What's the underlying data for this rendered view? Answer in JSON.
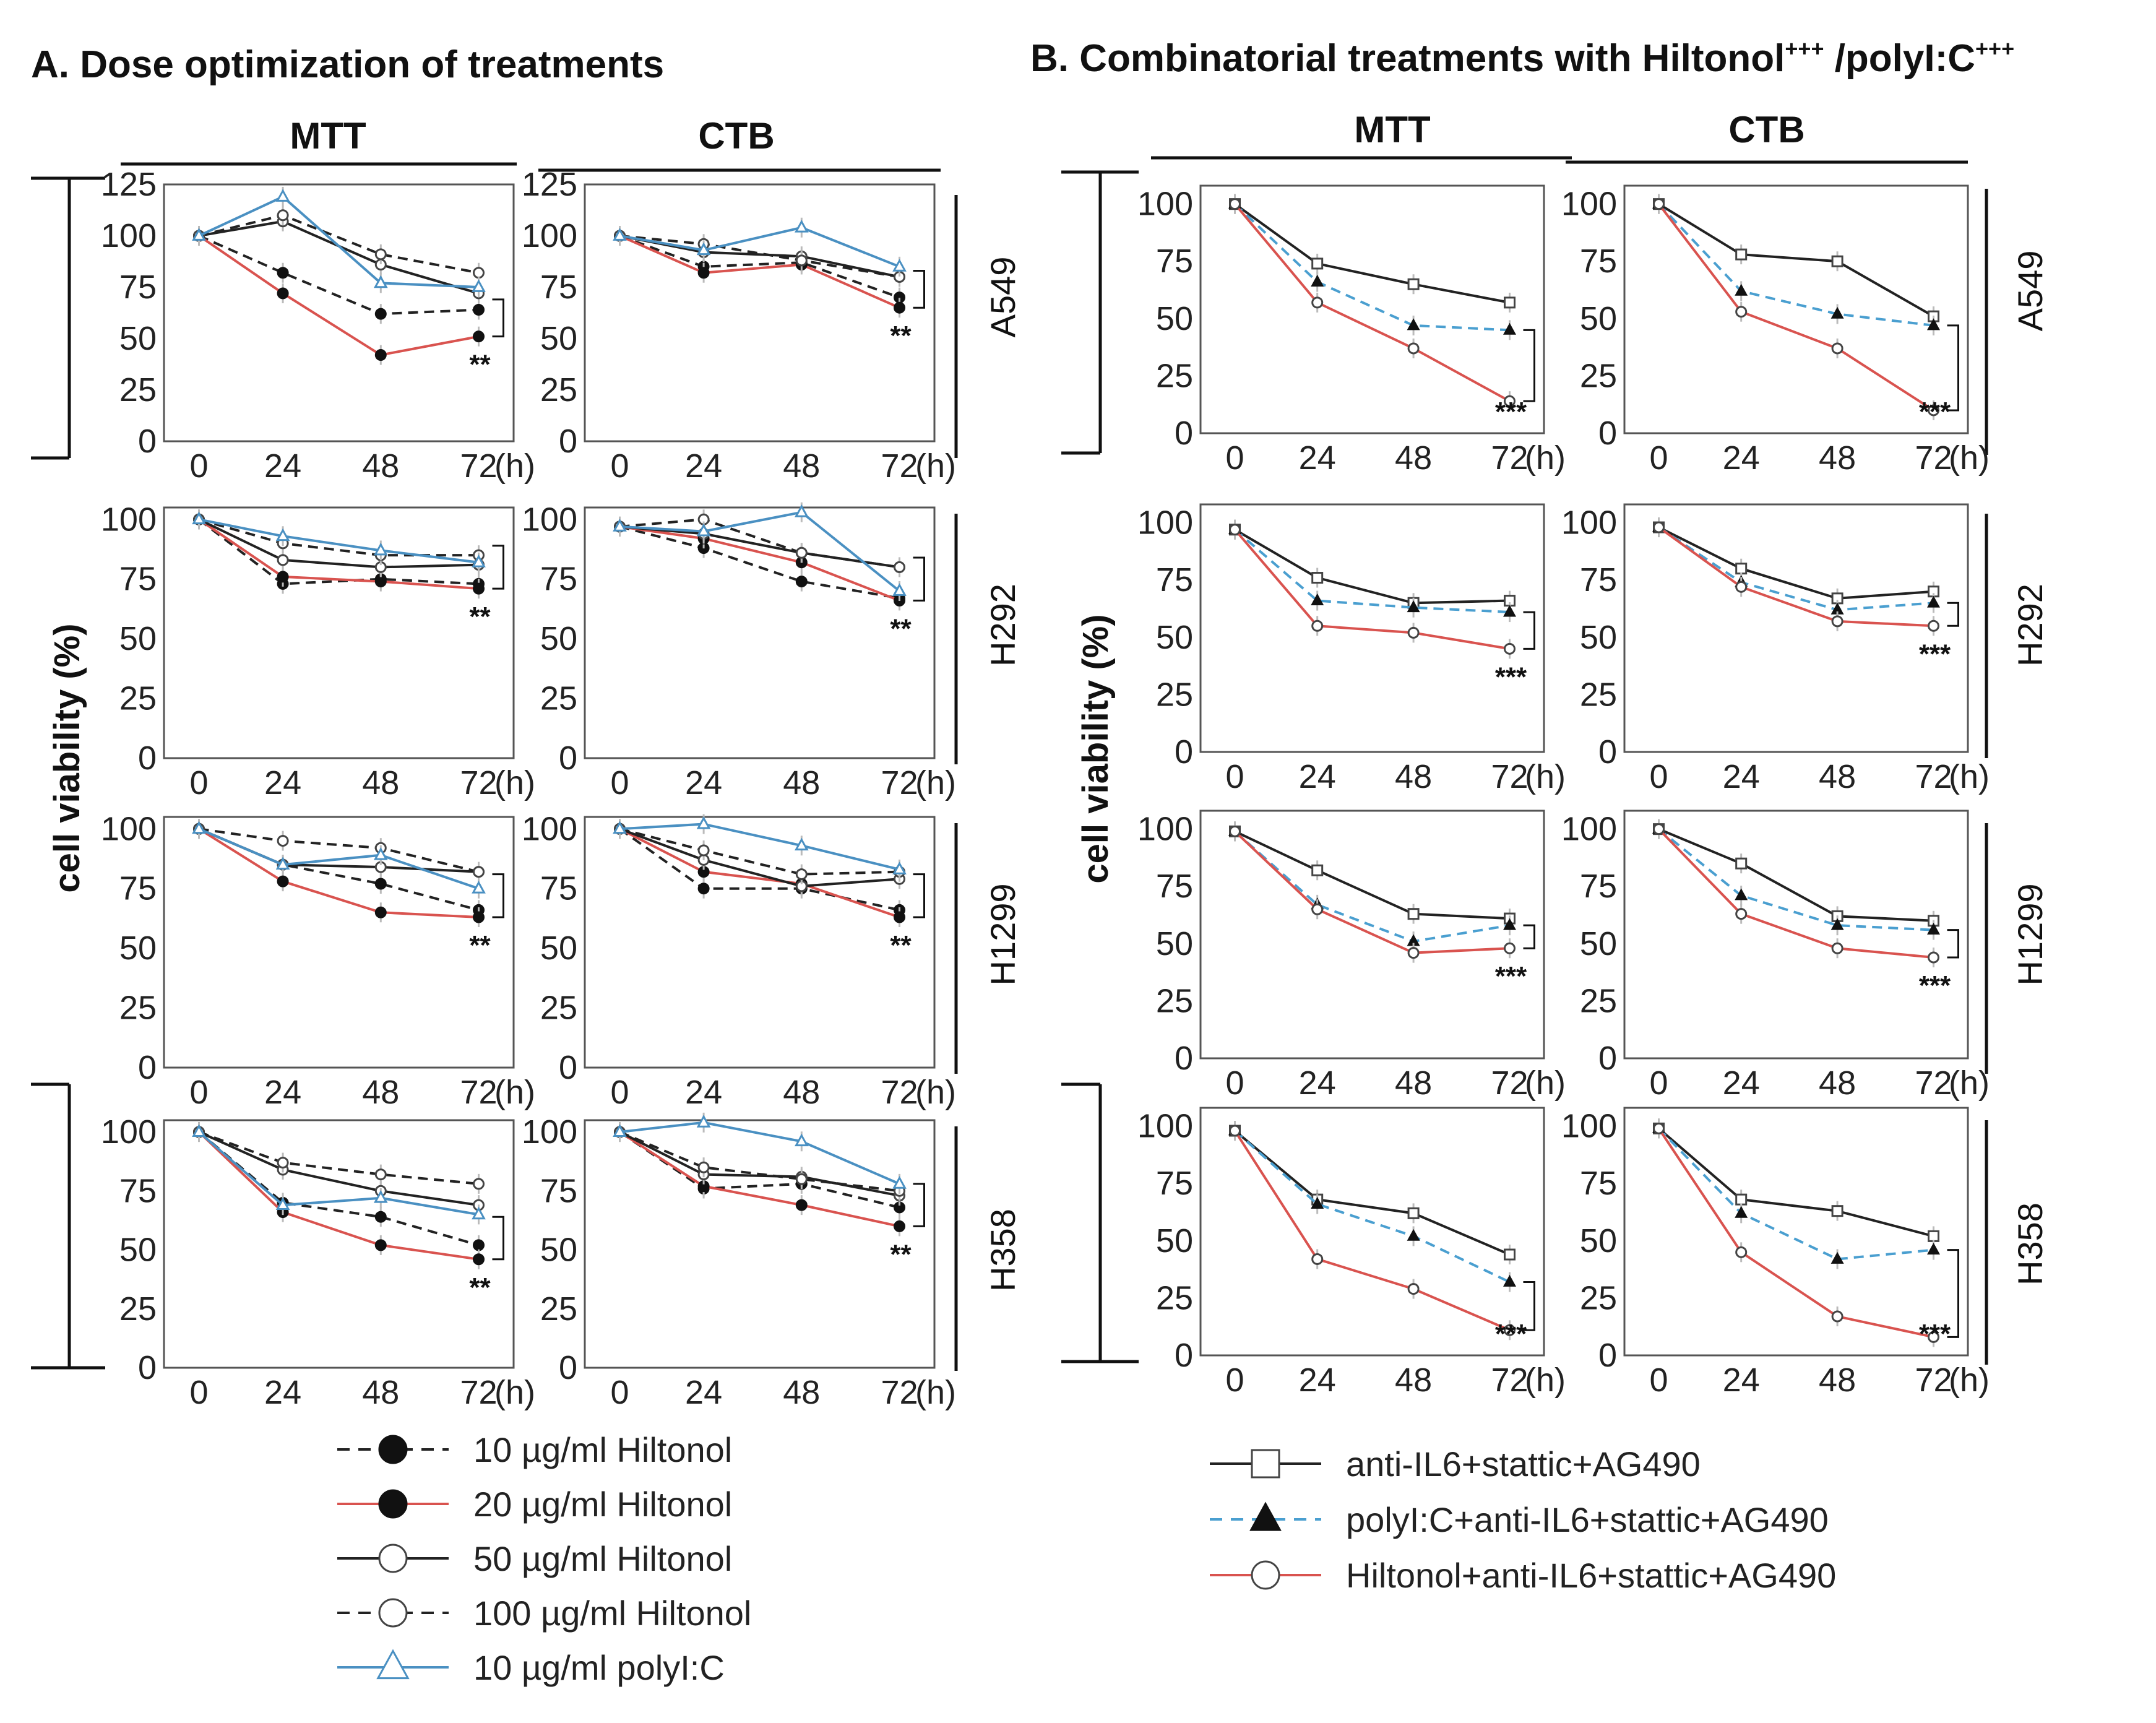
{
  "panelA": {
    "title": "A. Dose optimization of treatments",
    "columns": [
      "MTT",
      "CTB"
    ],
    "y_label": "cell viability (%)",
    "legend": [
      {
        "label": "10 µg/ml Hiltonol",
        "color": "#222222",
        "dash": true,
        "marker": "filled-circle"
      },
      {
        "label": "20 µg/ml Hiltonol",
        "color": "#d9534f",
        "dash": false,
        "marker": "filled-circle"
      },
      {
        "label": "50 µg/ml Hiltonol",
        "color": "#222222",
        "dash": false,
        "marker": "open-circle"
      },
      {
        "label": "100 µg/ml Hiltonol",
        "color": "#222222",
        "dash": true,
        "marker": "open-circle"
      },
      {
        "label": "10 µg/ml polyI:C",
        "color": "#4a90c2",
        "dash": false,
        "marker": "open-triangle"
      }
    ]
  },
  "panelB": {
    "title": "B. Combinatorial treatments with Hiltonol",
    "title_sup1": "+++",
    "title_mid": " /polyI:C",
    "title_sup2": "+++",
    "columns": [
      "MTT",
      "CTB"
    ],
    "y_label": "cell viability (%)",
    "legend": [
      {
        "label": "anti-IL6+stattic+AG490",
        "color": "#222222",
        "dash": false,
        "marker": "open-square"
      },
      {
        "label": "polyI:C+anti-IL6+stattic+AG490",
        "color": "#4a9fd0",
        "dash": true,
        "marker": "filled-triangle"
      },
      {
        "label": "Hiltonol+anti-IL6+stattic+AG490",
        "color": "#d9534f",
        "dash": false,
        "marker": "open-circle"
      }
    ]
  },
  "chart_data": [
    {
      "type": "line",
      "id": "A-MTT-A549",
      "panel": "A",
      "assay": "MTT",
      "cell_line": "A549",
      "categories": [
        "0",
        "24",
        "48",
        "72"
      ],
      "unit_suffix": "(h)",
      "yticks": [
        "0",
        "25",
        "50",
        "75",
        "100",
        "125"
      ],
      "ylim": [
        0,
        125
      ],
      "significance": "**",
      "series": [
        {
          "name": "10 µg/ml Hiltonol",
          "values": [
            100,
            82,
            62,
            64
          ]
        },
        {
          "name": "20 µg/ml Hiltonol",
          "values": [
            100,
            72,
            42,
            51
          ]
        },
        {
          "name": "50 µg/ml Hiltonol",
          "values": [
            100,
            107,
            86,
            72
          ]
        },
        {
          "name": "100 µg/ml Hiltonol",
          "values": [
            100,
            110,
            91,
            82
          ]
        },
        {
          "name": "10 µg/ml polyI:C",
          "values": [
            100,
            119,
            77,
            75
          ]
        }
      ]
    },
    {
      "type": "line",
      "id": "A-CTB-A549",
      "panel": "A",
      "assay": "CTB",
      "cell_line": "A549",
      "categories": [
        "0",
        "24",
        "48",
        "72"
      ],
      "unit_suffix": "(h)",
      "yticks": [
        "0",
        "25",
        "50",
        "75",
        "100",
        "125"
      ],
      "ylim": [
        0,
        125
      ],
      "significance": "**",
      "series": [
        {
          "name": "10 µg/ml Hiltonol",
          "values": [
            100,
            85,
            87,
            70
          ]
        },
        {
          "name": "20 µg/ml Hiltonol",
          "values": [
            100,
            82,
            86,
            65
          ]
        },
        {
          "name": "50 µg/ml Hiltonol",
          "values": [
            100,
            92,
            90,
            80
          ]
        },
        {
          "name": "100 µg/ml Hiltonol",
          "values": [
            100,
            96,
            88,
            80
          ]
        },
        {
          "name": "10 µg/ml polyI:C",
          "values": [
            100,
            93,
            104,
            85
          ]
        }
      ]
    },
    {
      "type": "line",
      "id": "A-MTT-H292",
      "panel": "A",
      "assay": "MTT",
      "cell_line": "H292",
      "categories": [
        "0",
        "24",
        "48",
        "72"
      ],
      "unit_suffix": "(h)",
      "yticks": [
        "0",
        "25",
        "50",
        "75",
        "100"
      ],
      "ylim": [
        0,
        105
      ],
      "significance": "**",
      "series": [
        {
          "name": "10 µg/ml Hiltonol",
          "values": [
            100,
            73,
            75,
            73
          ]
        },
        {
          "name": "20 µg/ml Hiltonol",
          "values": [
            100,
            76,
            74,
            71
          ]
        },
        {
          "name": "50 µg/ml Hiltonol",
          "values": [
            100,
            83,
            80,
            81
          ]
        },
        {
          "name": "100 µg/ml Hiltonol",
          "values": [
            100,
            90,
            85,
            85
          ]
        },
        {
          "name": "10 µg/ml polyI:C",
          "values": [
            100,
            93,
            87,
            82
          ]
        }
      ]
    },
    {
      "type": "line",
      "id": "A-CTB-H292",
      "panel": "A",
      "assay": "CTB",
      "cell_line": "H292",
      "categories": [
        "0",
        "24",
        "48",
        "72"
      ],
      "unit_suffix": "(h)",
      "yticks": [
        "0",
        "25",
        "50",
        "75",
        "100"
      ],
      "ylim": [
        0,
        105
      ],
      "significance": "**",
      "series": [
        {
          "name": "10 µg/ml Hiltonol",
          "values": [
            97,
            88,
            74,
            67
          ]
        },
        {
          "name": "20 µg/ml Hiltonol",
          "values": [
            97,
            92,
            82,
            66
          ]
        },
        {
          "name": "50 µg/ml Hiltonol",
          "values": [
            97,
            94,
            86,
            80
          ]
        },
        {
          "name": "100 µg/ml Hiltonol",
          "values": [
            97,
            100,
            86,
            80
          ]
        },
        {
          "name": "10 µg/ml polyI:C",
          "values": [
            97,
            95,
            103,
            70
          ]
        }
      ]
    },
    {
      "type": "line",
      "id": "A-MTT-H1299",
      "panel": "A",
      "assay": "MTT",
      "cell_line": "H1299",
      "categories": [
        "0",
        "24",
        "48",
        "72"
      ],
      "unit_suffix": "(h)",
      "yticks": [
        "0",
        "25",
        "50",
        "75",
        "100"
      ],
      "ylim": [
        0,
        105
      ],
      "significance": "**",
      "series": [
        {
          "name": "10 µg/ml Hiltonol",
          "values": [
            100,
            85,
            77,
            66
          ]
        },
        {
          "name": "20 µg/ml Hiltonol",
          "values": [
            100,
            78,
            65,
            63
          ]
        },
        {
          "name": "50 µg/ml Hiltonol",
          "values": [
            100,
            85,
            84,
            82
          ]
        },
        {
          "name": "100 µg/ml Hiltonol",
          "values": [
            100,
            95,
            92,
            82
          ]
        },
        {
          "name": "10 µg/ml polyI:C",
          "values": [
            100,
            85,
            89,
            75
          ]
        }
      ]
    },
    {
      "type": "line",
      "id": "A-CTB-H1299",
      "panel": "A",
      "assay": "CTB",
      "cell_line": "H1299",
      "categories": [
        "0",
        "24",
        "48",
        "72"
      ],
      "unit_suffix": "(h)",
      "yticks": [
        "0",
        "25",
        "50",
        "75",
        "100"
      ],
      "ylim": [
        0,
        105
      ],
      "significance": "**",
      "series": [
        {
          "name": "10 µg/ml Hiltonol",
          "values": [
            100,
            75,
            75,
            66
          ]
        },
        {
          "name": "20 µg/ml Hiltonol",
          "values": [
            100,
            82,
            77,
            63
          ]
        },
        {
          "name": "50 µg/ml Hiltonol",
          "values": [
            100,
            87,
            76,
            79
          ]
        },
        {
          "name": "100 µg/ml Hiltonol",
          "values": [
            100,
            91,
            81,
            82
          ]
        },
        {
          "name": "10 µg/ml polyI:C",
          "values": [
            100,
            102,
            93,
            83
          ]
        }
      ]
    },
    {
      "type": "line",
      "id": "A-MTT-H358",
      "panel": "A",
      "assay": "MTT",
      "cell_line": "H358",
      "categories": [
        "0",
        "24",
        "48",
        "72"
      ],
      "unit_suffix": "(h)",
      "yticks": [
        "0",
        "25",
        "50",
        "75",
        "100"
      ],
      "ylim": [
        0,
        105
      ],
      "significance": "**",
      "series": [
        {
          "name": "10 µg/ml Hiltonol",
          "values": [
            100,
            70,
            64,
            52
          ]
        },
        {
          "name": "20 µg/ml Hiltonol",
          "values": [
            100,
            66,
            52,
            46
          ]
        },
        {
          "name": "50 µg/ml Hiltonol",
          "values": [
            100,
            84,
            75,
            69
          ]
        },
        {
          "name": "100 µg/ml Hiltonol",
          "values": [
            100,
            87,
            82,
            78
          ]
        },
        {
          "name": "10 µg/ml polyI:C",
          "values": [
            100,
            69,
            72,
            65
          ]
        }
      ]
    },
    {
      "type": "line",
      "id": "A-CTB-H358",
      "panel": "A",
      "assay": "CTB",
      "cell_line": "H358",
      "categories": [
        "0",
        "24",
        "48",
        "72"
      ],
      "unit_suffix": "(h)",
      "yticks": [
        "0",
        "25",
        "50",
        "75",
        "100"
      ],
      "ylim": [
        0,
        105
      ],
      "significance": "**",
      "series": [
        {
          "name": "10 µg/ml Hiltonol",
          "values": [
            100,
            76,
            78,
            68
          ]
        },
        {
          "name": "20 µg/ml Hiltonol",
          "values": [
            100,
            77,
            69,
            60
          ]
        },
        {
          "name": "50 µg/ml Hiltonol",
          "values": [
            100,
            82,
            81,
            73
          ]
        },
        {
          "name": "100 µg/ml Hiltonol",
          "values": [
            100,
            85,
            80,
            75
          ]
        },
        {
          "name": "10 µg/ml polyI:C",
          "values": [
            100,
            104,
            96,
            78
          ]
        }
      ]
    },
    {
      "type": "line",
      "id": "B-MTT-A549",
      "panel": "B",
      "assay": "MTT",
      "cell_line": "A549",
      "categories": [
        "0",
        "24",
        "48",
        "72"
      ],
      "unit_suffix": "(h)",
      "yticks": [
        "0",
        "25",
        "50",
        "75",
        "100"
      ],
      "ylim": [
        0,
        108
      ],
      "significance": "***",
      "series": [
        {
          "name": "anti-IL6+stattic+AG490",
          "values": [
            100,
            74,
            65,
            57
          ]
        },
        {
          "name": "polyI:C+anti-IL6+stattic+AG490",
          "values": [
            100,
            66,
            47,
            45
          ]
        },
        {
          "name": "Hiltonol+anti-IL6+stattic+AG490",
          "values": [
            100,
            57,
            37,
            14
          ]
        }
      ]
    },
    {
      "type": "line",
      "id": "B-CTB-A549",
      "panel": "B",
      "assay": "CTB",
      "cell_line": "A549",
      "categories": [
        "0",
        "24",
        "48",
        "72"
      ],
      "unit_suffix": "(h)",
      "yticks": [
        "0",
        "25",
        "50",
        "75",
        "100"
      ],
      "ylim": [
        0,
        108
      ],
      "significance": "***",
      "series": [
        {
          "name": "anti-IL6+stattic+AG490",
          "values": [
            100,
            78,
            75,
            51
          ]
        },
        {
          "name": "polyI:C+anti-IL6+stattic+AG490",
          "values": [
            100,
            62,
            52,
            47
          ]
        },
        {
          "name": "Hiltonol+anti-IL6+stattic+AG490",
          "values": [
            100,
            53,
            37,
            10
          ]
        }
      ]
    },
    {
      "type": "line",
      "id": "B-MTT-H292",
      "panel": "B",
      "assay": "MTT",
      "cell_line": "H292",
      "categories": [
        "0",
        "24",
        "48",
        "72"
      ],
      "unit_suffix": "(h)",
      "yticks": [
        "0",
        "25",
        "50",
        "75",
        "100"
      ],
      "ylim": [
        0,
        108
      ],
      "significance": "***",
      "series": [
        {
          "name": "anti-IL6+stattic+AG490",
          "values": [
            97,
            76,
            65,
            66
          ]
        },
        {
          "name": "polyI:C+anti-IL6+stattic+AG490",
          "values": [
            97,
            66,
            63,
            61
          ]
        },
        {
          "name": "Hiltonol+anti-IL6+stattic+AG490",
          "values": [
            97,
            55,
            52,
            45
          ]
        }
      ]
    },
    {
      "type": "line",
      "id": "B-CTB-H292",
      "panel": "B",
      "assay": "CTB",
      "cell_line": "H292",
      "categories": [
        "0",
        "24",
        "48",
        "72"
      ],
      "unit_suffix": "(h)",
      "yticks": [
        "0",
        "25",
        "50",
        "75",
        "100"
      ],
      "ylim": [
        0,
        108
      ],
      "significance": "***",
      "series": [
        {
          "name": "anti-IL6+stattic+AG490",
          "values": [
            98,
            80,
            67,
            70
          ]
        },
        {
          "name": "polyI:C+anti-IL6+stattic+AG490",
          "values": [
            98,
            74,
            62,
            65
          ]
        },
        {
          "name": "Hiltonol+anti-IL6+stattic+AG490",
          "values": [
            98,
            72,
            57,
            55
          ]
        }
      ]
    },
    {
      "type": "line",
      "id": "B-MTT-H1299",
      "panel": "B",
      "assay": "MTT",
      "cell_line": "H1299",
      "categories": [
        "0",
        "24",
        "48",
        "72"
      ],
      "unit_suffix": "(h)",
      "yticks": [
        "0",
        "25",
        "50",
        "75",
        "100"
      ],
      "ylim": [
        0,
        108
      ],
      "significance": "***",
      "series": [
        {
          "name": "anti-IL6+stattic+AG490",
          "values": [
            99,
            82,
            63,
            61
          ]
        },
        {
          "name": "polyI:C+anti-IL6+stattic+AG490",
          "values": [
            99,
            67,
            51,
            58
          ]
        },
        {
          "name": "Hiltonol+anti-IL6+stattic+AG490",
          "values": [
            99,
            65,
            46,
            48
          ]
        }
      ]
    },
    {
      "type": "line",
      "id": "B-CTB-H1299",
      "panel": "B",
      "assay": "CTB",
      "cell_line": "H1299",
      "categories": [
        "0",
        "24",
        "48",
        "72"
      ],
      "unit_suffix": "(h)",
      "yticks": [
        "0",
        "25",
        "50",
        "75",
        "100"
      ],
      "ylim": [
        0,
        108
      ],
      "significance": "***",
      "series": [
        {
          "name": "anti-IL6+stattic+AG490",
          "values": [
            100,
            85,
            62,
            60
          ]
        },
        {
          "name": "polyI:C+anti-IL6+stattic+AG490",
          "values": [
            100,
            71,
            58,
            56
          ]
        },
        {
          "name": "Hiltonol+anti-IL6+stattic+AG490",
          "values": [
            100,
            63,
            48,
            44
          ]
        }
      ]
    },
    {
      "type": "line",
      "id": "B-MTT-H358",
      "panel": "B",
      "assay": "MTT",
      "cell_line": "H358",
      "categories": [
        "0",
        "24",
        "48",
        "72"
      ],
      "unit_suffix": "(h)",
      "yticks": [
        "0",
        "25",
        "50",
        "75",
        "100"
      ],
      "ylim": [
        0,
        108
      ],
      "significance": "***",
      "series": [
        {
          "name": "anti-IL6+stattic+AG490",
          "values": [
            98,
            68,
            62,
            44
          ]
        },
        {
          "name": "polyI:C+anti-IL6+stattic+AG490",
          "values": [
            98,
            66,
            52,
            32
          ]
        },
        {
          "name": "Hiltonol+anti-IL6+stattic+AG490",
          "values": [
            98,
            42,
            29,
            11
          ]
        }
      ]
    },
    {
      "type": "line",
      "id": "B-CTB-H358",
      "panel": "B",
      "assay": "CTB",
      "cell_line": "H358",
      "categories": [
        "0",
        "24",
        "48",
        "72"
      ],
      "unit_suffix": "(h)",
      "yticks": [
        "0",
        "25",
        "50",
        "75",
        "100"
      ],
      "ylim": [
        0,
        108
      ],
      "significance": "***",
      "series": [
        {
          "name": "anti-IL6+stattic+AG490",
          "values": [
            99,
            68,
            63,
            52
          ]
        },
        {
          "name": "polyI:C+anti-IL6+stattic+AG490",
          "values": [
            99,
            62,
            42,
            46
          ]
        },
        {
          "name": "Hiltonol+anti-IL6+stattic+AG490",
          "values": [
            99,
            45,
            17,
            8
          ]
        }
      ]
    }
  ]
}
